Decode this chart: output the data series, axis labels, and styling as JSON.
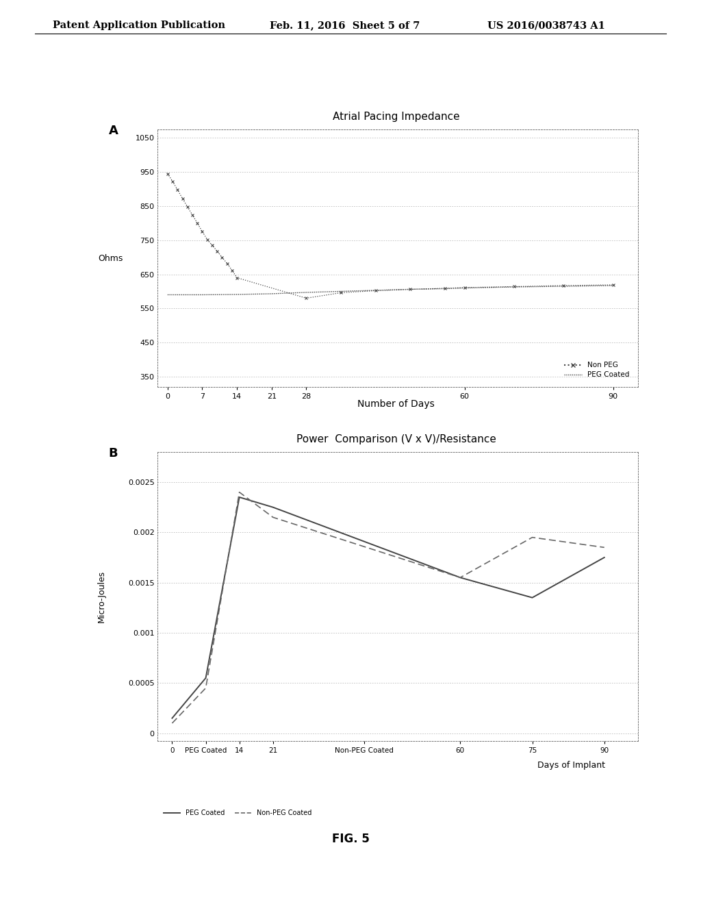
{
  "header_left": "Patent Application Publication",
  "header_middle": "Feb. 11, 2016  Sheet 5 of 7",
  "header_right": "US 2016/0038743 A1",
  "fig_label": "FIG. 5",
  "chart_A": {
    "label": "A",
    "title": "Atrial Pacing Impedance",
    "xlabel": "Number of Days",
    "ylabel": "Ohms",
    "yticks": [
      350,
      450,
      550,
      650,
      750,
      850,
      950,
      1050
    ],
    "xticks": [
      0,
      7,
      14,
      21,
      28,
      60,
      90
    ],
    "ylim": [
      320,
      1075
    ],
    "xlim": [
      -2,
      95
    ],
    "non_peg_x": [
      0,
      1,
      2,
      3,
      4,
      5,
      6,
      7,
      8,
      9,
      10,
      11,
      12,
      13,
      14,
      28,
      35,
      42,
      49,
      56,
      60,
      70,
      80,
      90
    ],
    "non_peg_y": [
      945,
      922,
      898,
      872,
      848,
      824,
      800,
      775,
      752,
      735,
      718,
      700,
      682,
      662,
      640,
      580,
      596,
      602,
      606,
      609,
      611,
      614,
      617,
      619
    ],
    "peg_x": [
      0,
      2,
      7,
      14,
      21,
      28,
      35,
      42,
      49,
      56,
      60,
      70,
      80,
      90
    ],
    "peg_y": [
      590,
      590,
      590,
      591,
      593,
      597,
      600,
      603,
      606,
      608,
      610,
      613,
      615,
      617
    ],
    "legend_non_peg": "Non PEG",
    "legend_peg": "PEG Coated"
  },
  "chart_B": {
    "label": "B",
    "title": "Power  Comparison (V x V)/Resistance",
    "xlabel": "Days of Implant",
    "ylabel": "Micro-Joules",
    "ytick_vals": [
      0,
      0.0005,
      0.001,
      0.0015,
      0.002,
      0.0025
    ],
    "ytick_labels": [
      "0",
      "0.0005",
      "0.001",
      "0.0015",
      "0.002",
      "0.0025"
    ],
    "ylim": [
      -8e-05,
      0.0028
    ],
    "xlim": [
      -3,
      97
    ],
    "peg_x": [
      0,
      7,
      14,
      21,
      60,
      75,
      90
    ],
    "peg_y": [
      0.00015,
      0.00055,
      0.00235,
      0.00225,
      0.00155,
      0.00135,
      0.00175
    ],
    "non_peg_x": [
      0,
      7,
      14,
      21,
      60,
      75,
      90
    ],
    "non_peg_y": [
      0.0001,
      0.00045,
      0.0024,
      0.00215,
      0.00155,
      0.00195,
      0.00185
    ],
    "xtick_positions": [
      0,
      7,
      14,
      21,
      40,
      60,
      75,
      90
    ],
    "xtick_labels": [
      "0",
      "PEG Coated",
      "14",
      "21",
      "Non-PEG Coated",
      "60",
      "75",
      "90"
    ],
    "legend_peg": "PEG Coated",
    "legend_non_peg": "Non-PEG Coated"
  },
  "bg_color": "#ffffff",
  "text_color": "#000000",
  "grid_color": "#bbbbbb",
  "line_color_dark": "#444444",
  "line_color_mid": "#666666"
}
